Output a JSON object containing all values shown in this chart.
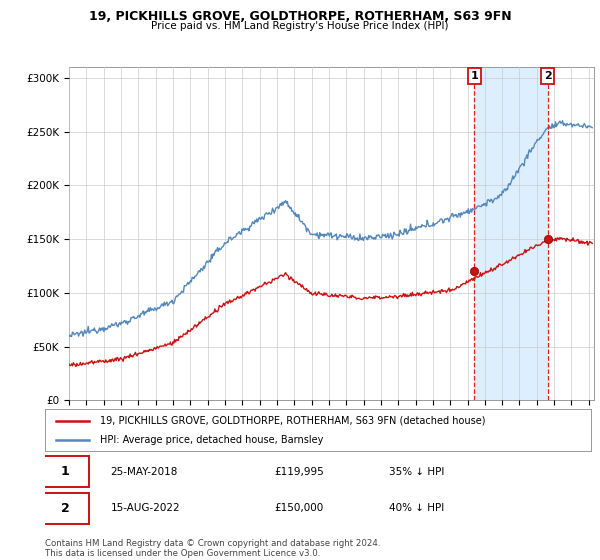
{
  "title": "19, PICKHILLS GROVE, GOLDTHORPE, ROTHERHAM, S63 9FN",
  "subtitle": "Price paid vs. HM Land Registry's House Price Index (HPI)",
  "ylabel_ticks": [
    "£0",
    "£50K",
    "£100K",
    "£150K",
    "£200K",
    "£250K",
    "£300K"
  ],
  "ylim": [
    0,
    310000
  ],
  "xlim_start": 1995.0,
  "xlim_end": 2025.3,
  "purchase1_date": 2018.39,
  "purchase1_price": 119995,
  "purchase2_date": 2022.62,
  "purchase2_price": 150000,
  "purchase1_label": "25-MAY-2018",
  "purchase1_price_str": "£119,995",
  "purchase1_hpi_str": "35% ↓ HPI",
  "purchase2_label": "15-AUG-2022",
  "purchase2_price_str": "£150,000",
  "purchase2_hpi_str": "40% ↓ HPI",
  "legend_line1": "19, PICKHILLS GROVE, GOLDTHORPE, ROTHERHAM, S63 9FN (detached house)",
  "legend_line2": "HPI: Average price, detached house, Barnsley",
  "footnote": "Contains HM Land Registry data © Crown copyright and database right 2024.\nThis data is licensed under the Open Government Licence v3.0.",
  "hpi_color": "#5588bb",
  "price_color": "#cc1111",
  "vline_color": "#dd2222",
  "bg_color": "#ffffff",
  "shade_color": "#ddeeff",
  "grid_color": "#cccccc"
}
